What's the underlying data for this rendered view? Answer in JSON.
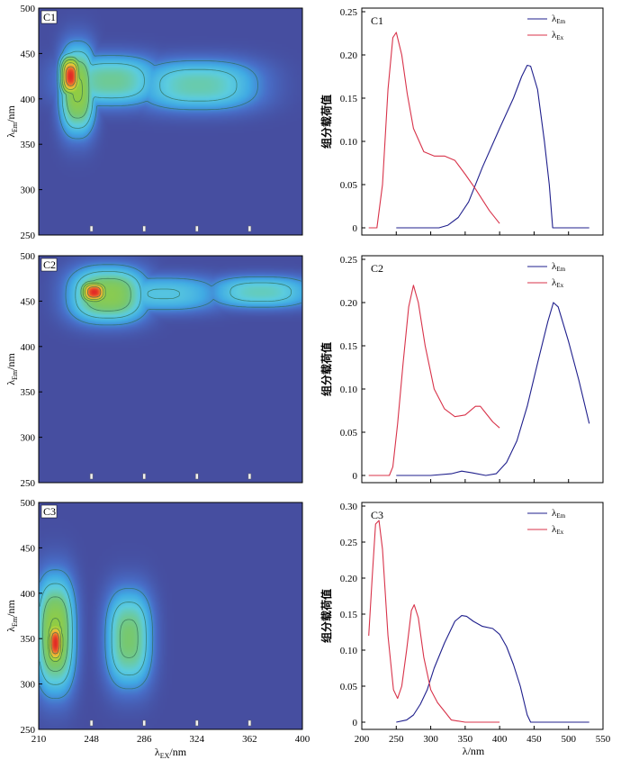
{
  "figure": {
    "contour_panels": [
      {
        "label": "C1"
      },
      {
        "label": "C2"
      },
      {
        "label": "C3"
      }
    ],
    "contour_axes": {
      "ylabel_main": "λ",
      "ylabel_sub": "Em",
      "ylabel_unit": "/nm",
      "xlabel_main": "λ",
      "xlabel_sub": "EX",
      "xlabel_unit": "/nm",
      "yticks": [
        250,
        300,
        350,
        400,
        450,
        500
      ],
      "xticks": [
        210,
        248,
        286,
        324,
        362,
        400
      ]
    },
    "loading_axes": {
      "ylabel": "组分载荷值",
      "xlabel": "λ/nm",
      "xticks": [
        200,
        250,
        300,
        350,
        400,
        450,
        500,
        550
      ]
    },
    "legend": {
      "em_main": "λ",
      "em_sub": "Em",
      "ex_main": "λ",
      "ex_sub": "Ex"
    }
  },
  "colors": {
    "em_line": "#1f1f8c",
    "ex_line": "#d8334a",
    "contour_bg": "#464ea0",
    "contour_line": "#2f6b52"
  },
  "chart_data": [
    {
      "type": "heatmap",
      "title": "C1",
      "xlabel": "λEX/nm",
      "ylabel": "λEm/nm",
      "xlim": [
        210,
        400
      ],
      "ylim": [
        250,
        500
      ],
      "blobs": [
        {
          "x": 233,
          "y": 425,
          "sx": 6,
          "sy": 18,
          "a": 1.0
        },
        {
          "x": 238,
          "y": 410,
          "sx": 10,
          "sy": 38,
          "a": 0.62
        },
        {
          "x": 262,
          "y": 420,
          "sx": 28,
          "sy": 22,
          "a": 0.45
        },
        {
          "x": 325,
          "y": 415,
          "sx": 35,
          "sy": 22,
          "a": 0.42
        }
      ]
    },
    {
      "type": "line",
      "title": "C1",
      "xlabel": "λ/nm",
      "ylabel": "组分载荷值",
      "xlim": [
        200,
        550
      ],
      "ylim": [
        0,
        0.25
      ],
      "yticks": [
        0,
        0.05,
        0.1,
        0.15,
        0.2,
        0.25
      ],
      "series": [
        {
          "name": "λEm",
          "x": [
            250,
            275,
            300,
            312,
            325,
            340,
            355,
            375,
            400,
            420,
            432,
            440,
            445,
            455,
            465,
            472,
            477,
            490,
            530
          ],
          "y": [
            0,
            0,
            0,
            0,
            0.003,
            0.012,
            0.03,
            0.07,
            0.115,
            0.15,
            0.175,
            0.188,
            0.187,
            0.16,
            0.1,
            0.05,
            0,
            0,
            0
          ]
        },
        {
          "name": "λEx",
          "x": [
            210,
            222,
            230,
            238,
            245,
            250,
            258,
            266,
            275,
            290,
            305,
            320,
            335,
            350,
            365,
            385,
            400
          ],
          "y": [
            0,
            0,
            0.05,
            0.16,
            0.22,
            0.226,
            0.2,
            0.155,
            0.115,
            0.088,
            0.083,
            0.083,
            0.078,
            0.062,
            0.045,
            0.02,
            0.005
          ]
        }
      ]
    },
    {
      "type": "heatmap",
      "title": "C2",
      "xlabel": "λEX/nm",
      "ylabel": "λEm/nm",
      "xlim": [
        210,
        400
      ],
      "ylim": [
        250,
        500
      ],
      "blobs": [
        {
          "x": 250,
          "y": 460,
          "sx": 8,
          "sy": 10,
          "a": 1.0
        },
        {
          "x": 260,
          "y": 457,
          "sx": 22,
          "sy": 24,
          "a": 0.58
        },
        {
          "x": 300,
          "y": 458,
          "sx": 34,
          "sy": 16,
          "a": 0.33
        },
        {
          "x": 370,
          "y": 460,
          "sx": 30,
          "sy": 14,
          "a": 0.4
        }
      ]
    },
    {
      "type": "line",
      "title": "C2",
      "xlabel": "λ/nm",
      "ylabel": "组分载荷值",
      "xlim": [
        200,
        550
      ],
      "ylim": [
        0,
        0.25
      ],
      "yticks": [
        0,
        0.05,
        0.1,
        0.15,
        0.2,
        0.25
      ],
      "series": [
        {
          "name": "λEm",
          "x": [
            250,
            300,
            330,
            345,
            360,
            380,
            395,
            410,
            425,
            440,
            455,
            470,
            478,
            485,
            500,
            515,
            530
          ],
          "y": [
            0,
            0,
            0.002,
            0.005,
            0.003,
            0,
            0.002,
            0.015,
            0.04,
            0.08,
            0.13,
            0.178,
            0.2,
            0.195,
            0.155,
            0.11,
            0.06
          ]
        },
        {
          "name": "λEx",
          "x": [
            210,
            240,
            245,
            252,
            260,
            268,
            275,
            282,
            292,
            305,
            320,
            335,
            350,
            365,
            372,
            380,
            390,
            400
          ],
          "y": [
            0,
            0,
            0.01,
            0.06,
            0.13,
            0.195,
            0.22,
            0.2,
            0.15,
            0.1,
            0.077,
            0.068,
            0.07,
            0.08,
            0.08,
            0.072,
            0.062,
            0.055
          ]
        }
      ]
    },
    {
      "type": "heatmap",
      "title": "C3",
      "xlabel": "λEX/nm",
      "ylabel": "λEm/nm",
      "xlim": [
        210,
        400
      ],
      "ylim": [
        250,
        500
      ],
      "blobs": [
        {
          "x": 222,
          "y": 345,
          "sx": 5,
          "sy": 20,
          "a": 1.0
        },
        {
          "x": 222,
          "y": 355,
          "sx": 11,
          "sy": 50,
          "a": 0.62
        },
        {
          "x": 275,
          "y": 350,
          "sx": 13,
          "sy": 42,
          "a": 0.5
        }
      ]
    },
    {
      "type": "line",
      "title": "C3",
      "xlabel": "λ/nm",
      "ylabel": "组分载荷值",
      "xlim": [
        200,
        550
      ],
      "ylim": [
        0,
        0.3
      ],
      "yticks": [
        0,
        0.05,
        0.1,
        0.15,
        0.2,
        0.25,
        0.3
      ],
      "series": [
        {
          "name": "λEm",
          "x": [
            250,
            265,
            275,
            285,
            295,
            305,
            320,
            335,
            345,
            352,
            362,
            375,
            390,
            400,
            410,
            420,
            430,
            440,
            445,
            450,
            500,
            530
          ],
          "y": [
            0,
            0.003,
            0.01,
            0.025,
            0.045,
            0.075,
            0.11,
            0.14,
            0.148,
            0.147,
            0.14,
            0.133,
            0.13,
            0.122,
            0.105,
            0.08,
            0.05,
            0.01,
            0,
            0,
            0,
            0
          ]
        },
        {
          "name": "λEx",
          "x": [
            210,
            215,
            220,
            225,
            230,
            238,
            246,
            252,
            258,
            265,
            272,
            276,
            282,
            290,
            300,
            310,
            320,
            330,
            350,
            400
          ],
          "y": [
            0.12,
            0.2,
            0.275,
            0.28,
            0.24,
            0.12,
            0.045,
            0.033,
            0.05,
            0.1,
            0.155,
            0.163,
            0.145,
            0.09,
            0.045,
            0.027,
            0.015,
            0.003,
            0,
            0
          ]
        }
      ]
    }
  ]
}
